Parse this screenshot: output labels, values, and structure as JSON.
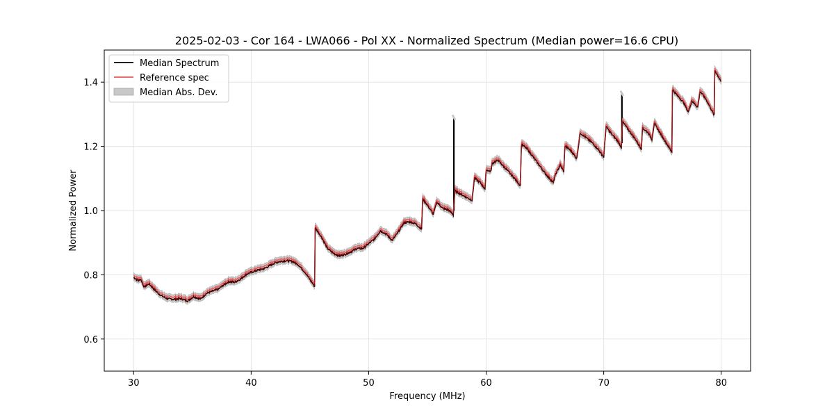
{
  "chart_data": {
    "type": "line",
    "title": "2025-02-03 - Cor 164 - LWA066 - Pol XX - Normalized Spectrum (Median power=16.6 CPU)",
    "xlabel": "Frequency (MHz)",
    "ylabel": "Normalized Power",
    "xlim": [
      27.5,
      82.5
    ],
    "ylim": [
      0.5,
      1.5
    ],
    "xticks": [
      30,
      40,
      50,
      60,
      70,
      80
    ],
    "yticks": [
      0.6,
      0.8,
      1.0,
      1.2,
      1.4
    ],
    "xtick_labels": [
      "30",
      "40",
      "50",
      "60",
      "70",
      "80"
    ],
    "ytick_labels": [
      "0.6",
      "0.8",
      "1.0",
      "1.2",
      "1.4"
    ],
    "grid": true,
    "legend_position": "top-left",
    "legend": [
      {
        "label": "Median Spectrum",
        "kind": "line",
        "color": "#000000"
      },
      {
        "label": "Reference spec",
        "kind": "line",
        "color": "#e8575a"
      },
      {
        "label": "Median Abs. Dev.",
        "kind": "patch",
        "color": "#c8c8c8"
      }
    ],
    "mad_width": 0.012,
    "breakpoints": [
      [
        30.0,
        0.795
      ],
      [
        30.4,
        0.785
      ],
      [
        30.6,
        0.79
      ],
      [
        30.9,
        0.765
      ],
      [
        31.3,
        0.775
      ],
      [
        31.7,
        0.76
      ],
      [
        32.1,
        0.745
      ],
      [
        32.5,
        0.735
      ],
      [
        32.9,
        0.728
      ],
      [
        33.5,
        0.727
      ],
      [
        34.0,
        0.729
      ],
      [
        34.6,
        0.722
      ],
      [
        35.1,
        0.735
      ],
      [
        35.7,
        0.728
      ],
      [
        36.2,
        0.745
      ],
      [
        36.7,
        0.752
      ],
      [
        37.2,
        0.758
      ],
      [
        37.6,
        0.77
      ],
      [
        38.1,
        0.782
      ],
      [
        38.6,
        0.78
      ],
      [
        39.1,
        0.79
      ],
      [
        39.6,
        0.805
      ],
      [
        40.1,
        0.812
      ],
      [
        40.6,
        0.818
      ],
      [
        41.1,
        0.822
      ],
      [
        41.5,
        0.83
      ],
      [
        42.0,
        0.84
      ],
      [
        42.5,
        0.845
      ],
      [
        43.0,
        0.847
      ],
      [
        43.5,
        0.845
      ],
      [
        44.0,
        0.835
      ],
      [
        44.6,
        0.81
      ],
      [
        45.4,
        0.767
      ],
      [
        45.45,
        0.95
      ],
      [
        46.0,
        0.92
      ],
      [
        46.5,
        0.885
      ],
      [
        47.0,
        0.87
      ],
      [
        47.5,
        0.862
      ],
      [
        48.0,
        0.867
      ],
      [
        48.5,
        0.875
      ],
      [
        49.0,
        0.885
      ],
      [
        49.5,
        0.885
      ],
      [
        50.0,
        0.9
      ],
      [
        50.5,
        0.915
      ],
      [
        51.0,
        0.94
      ],
      [
        51.5,
        0.93
      ],
      [
        52.0,
        0.91
      ],
      [
        52.5,
        0.935
      ],
      [
        53.0,
        0.965
      ],
      [
        53.5,
        0.968
      ],
      [
        54.0,
        0.962
      ],
      [
        54.5,
        0.945
      ],
      [
        54.6,
        1.04
      ],
      [
        55.0,
        1.02
      ],
      [
        55.5,
        0.992
      ],
      [
        55.8,
        1.03
      ],
      [
        56.3,
        1.01
      ],
      [
        56.8,
        1.005
      ],
      [
        57.2,
        0.99
      ],
      [
        57.35,
        1.065
      ],
      [
        57.8,
        1.055
      ],
      [
        58.3,
        1.045
      ],
      [
        58.8,
        1.035
      ],
      [
        59.0,
        1.105
      ],
      [
        59.5,
        1.09
      ],
      [
        59.9,
        1.07
      ],
      [
        60.0,
        1.13
      ],
      [
        60.4,
        1.125
      ],
      [
        60.5,
        1.15
      ],
      [
        61.0,
        1.16
      ],
      [
        61.5,
        1.14
      ],
      [
        62.0,
        1.12
      ],
      [
        62.5,
        1.1
      ],
      [
        62.9,
        1.08
      ],
      [
        63.0,
        1.21
      ],
      [
        63.5,
        1.195
      ],
      [
        64.0,
        1.17
      ],
      [
        64.5,
        1.145
      ],
      [
        65.0,
        1.12
      ],
      [
        65.7,
        1.09
      ],
      [
        65.9,
        1.115
      ],
      [
        66.3,
        1.145
      ],
      [
        66.6,
        1.125
      ],
      [
        66.7,
        1.205
      ],
      [
        67.2,
        1.19
      ],
      [
        67.7,
        1.165
      ],
      [
        68.0,
        1.245
      ],
      [
        68.5,
        1.23
      ],
      [
        69.0,
        1.215
      ],
      [
        69.5,
        1.195
      ],
      [
        70.0,
        1.17
      ],
      [
        70.2,
        1.265
      ],
      [
        70.7,
        1.24
      ],
      [
        71.2,
        1.22
      ],
      [
        71.5,
        1.2
      ],
      [
        71.6,
        1.28
      ],
      [
        72.2,
        1.25
      ],
      [
        72.7,
        1.225
      ],
      [
        73.2,
        1.195
      ],
      [
        73.3,
        1.26
      ],
      [
        73.8,
        1.245
      ],
      [
        74.1,
        1.225
      ],
      [
        74.3,
        1.275
      ],
      [
        74.8,
        1.245
      ],
      [
        75.3,
        1.215
      ],
      [
        75.8,
        1.185
      ],
      [
        75.85,
        1.38
      ],
      [
        76.3,
        1.36
      ],
      [
        76.8,
        1.34
      ],
      [
        77.2,
        1.31
      ],
      [
        77.5,
        1.345
      ],
      [
        78.0,
        1.325
      ],
      [
        78.2,
        1.375
      ],
      [
        78.7,
        1.35
      ],
      [
        79.2,
        1.315
      ],
      [
        79.4,
        1.3
      ],
      [
        79.45,
        1.44
      ],
      [
        80.0,
        1.405
      ]
    ],
    "spikes": [
      {
        "x": 57.25,
        "base": 1.0,
        "top": 1.29
      },
      {
        "x": 71.55,
        "base": 1.21,
        "top": 1.365
      }
    ]
  },
  "colors": {
    "median": "#000000",
    "reference": "#e8575a",
    "mad": "#c8c8c8",
    "grid": "#e5e5e5"
  }
}
